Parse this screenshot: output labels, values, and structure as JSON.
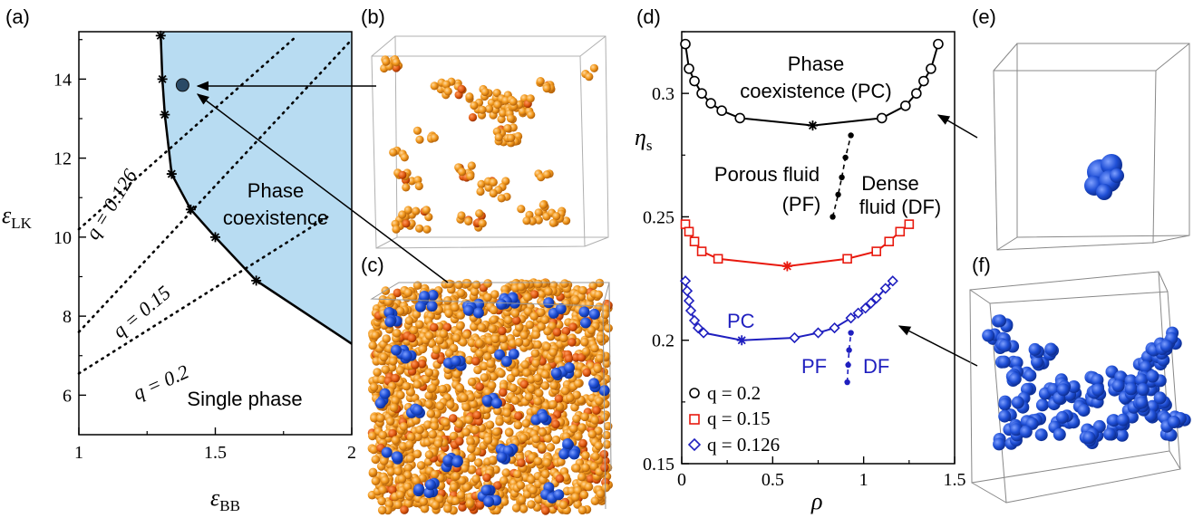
{
  "panel_labels": [
    "(a)",
    "(b)",
    "(c)",
    "(d)",
    "(e)",
    "(f)"
  ],
  "colors": {
    "coexistence_fill": "#b8dcf2",
    "q02": "#000000",
    "q015": "#e8190e",
    "q0126": "#1f1fbf",
    "orange_particle": "#f39a1e",
    "red_particle": "#e05a10",
    "blue_particle": "#1f4fd6"
  },
  "chart_data": [
    {
      "panel": "(a)",
      "type": "line",
      "xlabel": "ε_BB",
      "ylabel": "ε_LK",
      "xlim": [
        1,
        2
      ],
      "ylim": [
        5,
        15.2
      ],
      "xticks": [
        1,
        1.5,
        2
      ],
      "yticks": [
        6,
        8,
        10,
        12,
        14
      ],
      "region_labels": {
        "coexistence": [
          "Phase",
          "coexistence"
        ],
        "single": "Single phase"
      },
      "series": [
        {
          "role": "boundary",
          "x": [
            1.3,
            1.306,
            1.315,
            1.34,
            1.41,
            1.5,
            1.65,
            2.0
          ],
          "y": [
            15.1,
            14.0,
            13.1,
            11.6,
            10.7,
            10.0,
            8.9,
            7.3
          ]
        },
        {
          "role": "boundary-markers",
          "x": [
            1.3,
            1.306,
            1.315,
            1.34,
            1.41,
            1.5,
            1.65
          ],
          "y": [
            15.1,
            14.0,
            13.1,
            11.6,
            10.7,
            10.0,
            8.9
          ]
        },
        {
          "name": "q = 0.126",
          "style": "dotted",
          "x": [
            1.0,
            1.8
          ],
          "y": [
            10.2,
            15.1
          ]
        },
        {
          "name": "q = 0.15",
          "style": "dotted",
          "x": [
            1.0,
            2.0
          ],
          "y": [
            7.6,
            15.0
          ]
        },
        {
          "name": "q = 0.2",
          "style": "dotted",
          "x": [
            1.0,
            1.92
          ],
          "y": [
            6.55,
            10.55
          ]
        }
      ],
      "highlight_point": {
        "x": 1.38,
        "y": 13.85
      }
    },
    {
      "panel": "(d)",
      "type": "line",
      "xlabel": "ρ",
      "ylabel": "η_s",
      "xlim": [
        0,
        1.5
      ],
      "ylim": [
        0.15,
        0.325
      ],
      "xticks": [
        "0",
        "0.5",
        "1",
        "1.5"
      ],
      "yticks": [
        "0.15",
        "0.2",
        "0.25",
        "0.3"
      ],
      "annotations": {
        "pc": [
          "Phase",
          "coexistence (PC)"
        ],
        "porous": [
          "Porous fluid",
          "(PF)"
        ],
        "dense": [
          "Dense",
          "fluid (DF)"
        ],
        "pc_blue": "PC",
        "pf_blue": "PF",
        "df_blue": "DF"
      },
      "legend": {
        "placement": "bottom-left",
        "entries": [
          "q = 0.2",
          "q = 0.15",
          "q = 0.126"
        ]
      },
      "series": [
        {
          "name": "q = 0.2",
          "marker": "circle",
          "x": [
            0.02,
            0.04,
            0.07,
            0.11,
            0.16,
            0.22,
            0.32,
            0.72,
            1.1,
            1.23,
            1.29,
            1.33,
            1.37,
            1.41
          ],
          "y": [
            0.32,
            0.31,
            0.305,
            0.3,
            0.296,
            0.293,
            0.29,
            0.287,
            0.29,
            0.295,
            0.3,
            0.305,
            0.31,
            0.32
          ],
          "star_x": 0.72,
          "star_y": 0.287
        },
        {
          "name": "q = 0.15",
          "marker": "square",
          "x": [
            0.02,
            0.04,
            0.07,
            0.11,
            0.2,
            0.58,
            0.91,
            1.07,
            1.14,
            1.2,
            1.25
          ],
          "y": [
            0.247,
            0.244,
            0.24,
            0.236,
            0.233,
            0.23,
            0.233,
            0.236,
            0.24,
            0.244,
            0.247
          ],
          "star_x": 0.58,
          "star_y": 0.23
        },
        {
          "name": "q = 0.126",
          "marker": "diamond",
          "x": [
            0.02,
            0.03,
            0.04,
            0.05,
            0.07,
            0.09,
            0.12,
            0.33,
            0.62,
            0.75,
            0.84,
            0.93,
            0.97,
            1.01,
            1.04,
            1.07,
            1.12,
            1.16
          ],
          "y": [
            0.224,
            0.22,
            0.216,
            0.212,
            0.208,
            0.205,
            0.203,
            0.2,
            0.201,
            0.203,
            0.205,
            0.209,
            0.211,
            0.213,
            0.215,
            0.217,
            0.221,
            0.224
          ],
          "star_x": 0.33,
          "star_y": 0.2
        },
        {
          "name": "PF-DF black",
          "style": "dashed",
          "x": [
            0.83,
            0.86,
            0.88,
            0.9,
            0.93
          ],
          "y": [
            0.25,
            0.259,
            0.266,
            0.274,
            0.283
          ]
        },
        {
          "name": "PF-DF blue",
          "style": "dashed",
          "x": [
            0.91,
            0.915,
            0.92,
            0.93
          ],
          "y": [
            0.183,
            0.19,
            0.196,
            0.203
          ]
        }
      ]
    }
  ]
}
